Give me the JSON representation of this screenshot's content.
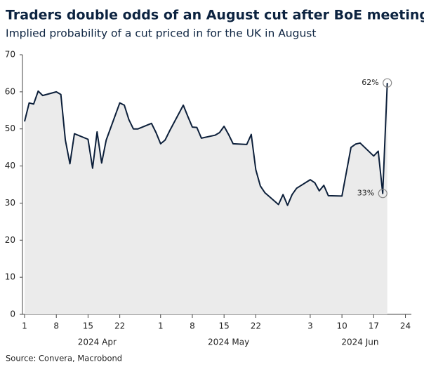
{
  "chart_data": {
    "type": "area-line",
    "title": "Traders double odds of an August cut after BoE meeting",
    "subtitle": "Implied probability of a cut priced in for the UK in August",
    "source": "Source: Convera, Macrobond",
    "x": [
      "2024-04-01",
      "2024-04-02",
      "2024-04-03",
      "2024-04-04",
      "2024-04-05",
      "2024-04-08",
      "2024-04-09",
      "2024-04-10",
      "2024-04-11",
      "2024-04-12",
      "2024-04-15",
      "2024-04-16",
      "2024-04-17",
      "2024-04-18",
      "2024-04-19",
      "2024-04-22",
      "2024-04-23",
      "2024-04-24",
      "2024-04-25",
      "2024-04-26",
      "2024-04-29",
      "2024-04-30",
      "2024-05-01",
      "2024-05-02",
      "2024-05-03",
      "2024-05-06",
      "2024-05-07",
      "2024-05-08",
      "2024-05-09",
      "2024-05-10",
      "2024-05-13",
      "2024-05-14",
      "2024-05-15",
      "2024-05-16",
      "2024-05-17",
      "2024-05-20",
      "2024-05-21",
      "2024-05-22",
      "2024-05-23",
      "2024-05-24",
      "2024-05-27",
      "2024-05-28",
      "2024-05-29",
      "2024-05-30",
      "2024-05-31",
      "2024-06-03",
      "2024-06-04",
      "2024-06-05",
      "2024-06-06",
      "2024-06-07",
      "2024-06-10",
      "2024-06-11",
      "2024-06-12",
      "2024-06-13",
      "2024-06-14",
      "2024-06-17",
      "2024-06-18",
      "2024-06-19",
      "2024-06-20"
    ],
    "values": [
      52,
      57,
      56.7,
      60.2,
      59,
      60,
      59.3,
      47,
      40.6,
      48.7,
      47.2,
      39.4,
      49.2,
      40.8,
      47,
      57,
      56.4,
      52.5,
      50,
      50,
      51.5,
      49,
      46,
      47,
      49.5,
      56.4,
      53.4,
      50.5,
      50.4,
      47.5,
      48.3,
      49,
      50.7,
      48.5,
      46,
      45.8,
      48.5,
      39,
      34.6,
      32.8,
      29.6,
      32.3,
      29.4,
      32.3,
      34,
      36.3,
      35.5,
      33.3,
      34.8,
      32,
      31.9,
      38.5,
      45,
      45.9,
      46.2,
      42.7,
      44,
      32.6,
      62.4
    ],
    "value_labels": [
      null,
      null,
      null,
      null,
      null,
      null,
      null,
      null,
      null,
      null,
      null,
      null,
      null,
      null,
      null,
      null,
      null,
      null,
      null,
      null,
      null,
      null,
      null,
      null,
      null,
      null,
      null,
      null,
      null,
      null,
      null,
      null,
      null,
      null,
      null,
      null,
      null,
      null,
      null,
      null,
      null,
      null,
      null,
      null,
      null,
      null,
      null,
      null,
      null,
      null,
      null,
      null,
      null,
      null,
      null,
      null,
      null,
      "33%",
      "62%"
    ],
    "line_color": "#0c1f3a",
    "area_color": "#ebebeb",
    "xlim": [
      "2024-04-01",
      "2024-06-25"
    ],
    "xticks": [
      {
        "value": "2024-04-01",
        "label": "1"
      },
      {
        "value": "2024-04-08",
        "label": "8"
      },
      {
        "value": "2024-04-15",
        "label": "15"
      },
      {
        "value": "2024-04-22",
        "label": "22"
      },
      {
        "value": "2024-05-01",
        "label": "1"
      },
      {
        "value": "2024-05-08",
        "label": "8"
      },
      {
        "value": "2024-05-15",
        "label": "15"
      },
      {
        "value": "2024-05-22",
        "label": "22"
      },
      {
        "value": "2024-06-03",
        "label": "3"
      },
      {
        "value": "2024-06-10",
        "label": "10"
      },
      {
        "value": "2024-06-17",
        "label": "17"
      },
      {
        "value": "2024-06-24",
        "label": "24"
      }
    ],
    "x_groups": [
      {
        "value": "2024-04-17",
        "label": "2024 Apr"
      },
      {
        "value": "2024-05-16",
        "label": "2024 May"
      },
      {
        "value": "2024-06-14",
        "label": "2024 Jun"
      }
    ],
    "ylim": [
      0,
      70
    ],
    "yticks": [
      0,
      10,
      20,
      30,
      40,
      50,
      60,
      70
    ]
  }
}
